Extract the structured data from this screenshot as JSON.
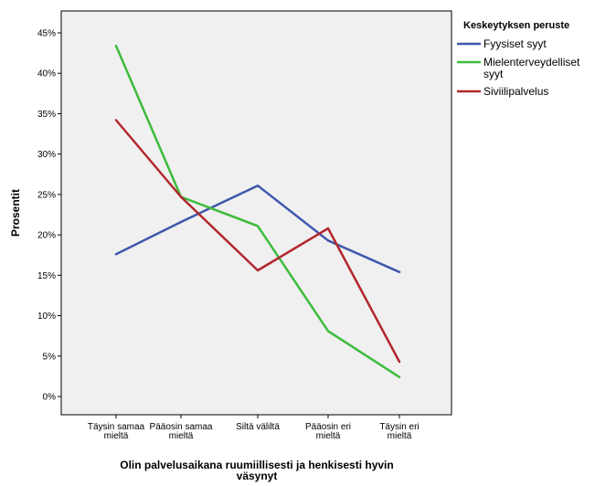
{
  "chart_data": {
    "type": "line",
    "xlabel_lines": [
      "Olin palvelusaikana ruumiillisesti ja henkisesti hyvin",
      "väsynyt"
    ],
    "ylabel": "Prosentit",
    "categories": [
      [
        "Täysin samaa",
        "mieltä"
      ],
      [
        "Pääosin samaa",
        "mieltä"
      ],
      [
        "Siltä väliltä"
      ],
      [
        "Pääosin eri",
        "mieltä"
      ],
      [
        "Täysin eri",
        "mieltä"
      ]
    ],
    "yticks": [
      "0%",
      "5%",
      "10%",
      "15%",
      "20%",
      "25%",
      "30%",
      "35%",
      "40%",
      "45%"
    ],
    "ylim": [
      0,
      45
    ],
    "grid": false,
    "legend": {
      "title": "Keskeytyksen peruste",
      "placement": "right"
    },
    "series": [
      {
        "name_lines": [
          "Fyysiset syyt"
        ],
        "color": "#3e58ac",
        "values": [
          17.6,
          21.6,
          26.1,
          19.3,
          15.4
        ]
      },
      {
        "name_lines": [
          "Mielenterveydelliset",
          "syyt"
        ],
        "color": "#3cbc3c",
        "values": [
          43.4,
          24.7,
          21.1,
          8.1,
          2.4
        ]
      },
      {
        "name_lines": [
          "Siviilipalvelus"
        ],
        "color": "#b2272d",
        "values": [
          34.2,
          24.7,
          15.6,
          20.8,
          4.3
        ]
      }
    ],
    "colors": {
      "plot_background": "#f0f0f0",
      "axis": "#000000"
    }
  }
}
